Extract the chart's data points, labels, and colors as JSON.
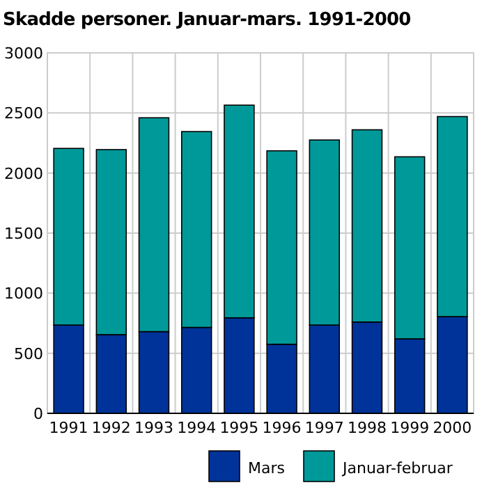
{
  "chart_data": {
    "type": "bar",
    "title": "Skadde personer. Januar-mars. 1991-2000",
    "categories": [
      "1991",
      "1992",
      "1993",
      "1994",
      "1995",
      "1996",
      "1997",
      "1998",
      "1999",
      "2000"
    ],
    "series": [
      {
        "name": "Mars",
        "color": "#003399",
        "values": [
          735,
          655,
          680,
          715,
          795,
          575,
          735,
          760,
          620,
          805
        ]
      },
      {
        "name": "Januar-februar",
        "color": "#009999",
        "values": [
          1470,
          1540,
          1780,
          1630,
          1770,
          1610,
          1540,
          1600,
          1515,
          1665
        ]
      }
    ],
    "stacked": true,
    "ylim": [
      0,
      3000
    ],
    "yticks": [
      0,
      500,
      1000,
      1500,
      2000,
      2500,
      3000
    ],
    "grid": true,
    "legend": "bottom"
  }
}
